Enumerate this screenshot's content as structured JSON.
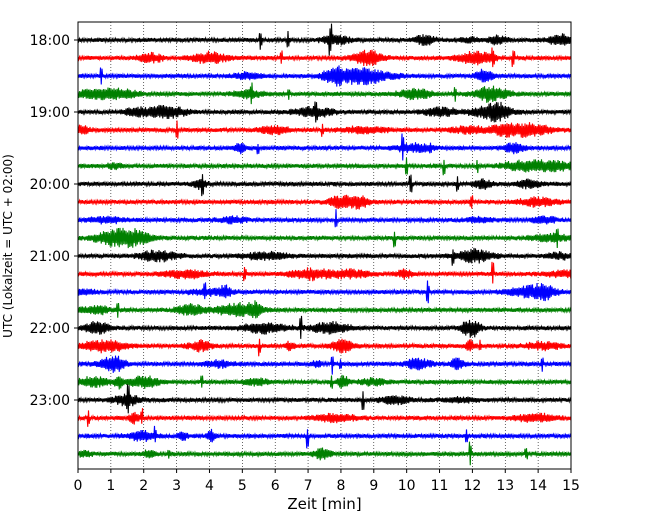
{
  "chart_data": {
    "type": "line",
    "title": "",
    "xlabel": "Zeit  [min]",
    "ylabel": "UTC (Lokalzeit = UTC + 02:00)",
    "xlim": [
      0,
      15
    ],
    "x_ticks": [
      "0",
      "1",
      "2",
      "3",
      "4",
      "5",
      "6",
      "7",
      "8",
      "9",
      "10",
      "11",
      "12",
      "13",
      "14",
      "15"
    ],
    "y_ticks": [
      "18:00",
      "19:00",
      "20:00",
      "21:00",
      "22:00",
      "23:00"
    ],
    "grid": "vertical dotted lines at each minute",
    "trace_interval_minutes": 15,
    "colors": [
      "#000000",
      "#ff0000",
      "#0000ff",
      "#008000"
    ],
    "series": [
      {
        "start": "18:00",
        "color": "#000000"
      },
      {
        "start": "18:15",
        "color": "#ff0000"
      },
      {
        "start": "18:30",
        "color": "#0000ff"
      },
      {
        "start": "18:45",
        "color": "#008000"
      },
      {
        "start": "19:00",
        "color": "#000000"
      },
      {
        "start": "19:15",
        "color": "#ff0000"
      },
      {
        "start": "19:30",
        "color": "#0000ff"
      },
      {
        "start": "19:45",
        "color": "#008000"
      },
      {
        "start": "20:00",
        "color": "#000000"
      },
      {
        "start": "20:15",
        "color": "#ff0000"
      },
      {
        "start": "20:30",
        "color": "#0000ff"
      },
      {
        "start": "20:45",
        "color": "#008000"
      },
      {
        "start": "21:00",
        "color": "#000000"
      },
      {
        "start": "21:15",
        "color": "#ff0000"
      },
      {
        "start": "21:30",
        "color": "#0000ff"
      },
      {
        "start": "21:45",
        "color": "#008000"
      },
      {
        "start": "22:00",
        "color": "#000000"
      },
      {
        "start": "22:15",
        "color": "#ff0000"
      },
      {
        "start": "22:30",
        "color": "#0000ff"
      },
      {
        "start": "22:45",
        "color": "#008000"
      },
      {
        "start": "23:00",
        "color": "#000000"
      },
      {
        "start": "23:15",
        "color": "#ff0000"
      },
      {
        "start": "23:30",
        "color": "#0000ff"
      },
      {
        "start": "23:45",
        "color": "#008000"
      }
    ]
  }
}
